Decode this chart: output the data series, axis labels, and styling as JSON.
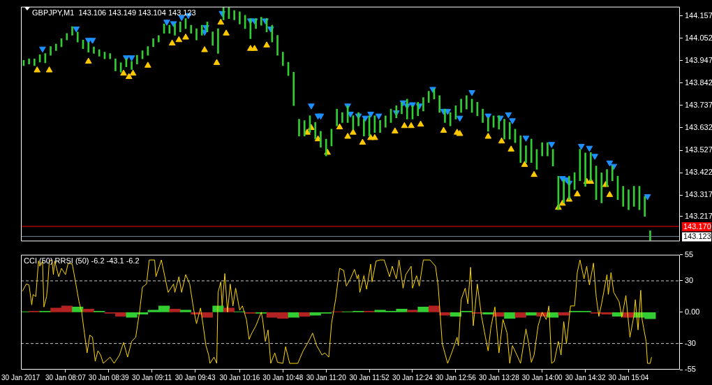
{
  "chart_data": [
    {
      "type": "bar",
      "title": "GBPJPY,M1  143.106 143.149 143.104 143.123",
      "xlim": [
        "2017-01-30T07:34",
        "2017-01-30T15:42"
      ],
      "ylim": [
        143.1,
        144.2
      ],
      "yticks": [
        144.157,
        144.052,
        143.947,
        143.842,
        143.737,
        143.632,
        143.527,
        143.422,
        143.317,
        143.217
      ],
      "tick_labels": "y",
      "color": "#32cd32",
      "x": [
        "2017-01-30T07:36",
        "2017-01-30T07:40",
        "2017-01-30T07:44",
        "2017-01-30T07:48",
        "2017-01-30T07:52",
        "2017-01-30T07:56",
        "2017-01-30T08:00",
        "2017-01-30T08:04",
        "2017-01-30T08:08",
        "2017-01-30T08:12",
        "2017-01-30T08:16",
        "2017-01-30T08:20",
        "2017-01-30T08:24",
        "2017-01-30T08:28",
        "2017-01-30T08:32",
        "2017-01-30T08:36",
        "2017-01-30T08:40",
        "2017-01-30T08:44",
        "2017-01-30T08:48",
        "2017-01-30T08:52",
        "2017-01-30T08:56",
        "2017-01-30T09:00",
        "2017-01-30T09:04",
        "2017-01-30T09:08",
        "2017-01-30T09:12",
        "2017-01-30T09:16",
        "2017-01-30T09:20",
        "2017-01-30T09:24",
        "2017-01-30T09:28",
        "2017-01-30T09:32",
        "2017-01-30T09:36",
        "2017-01-30T09:40",
        "2017-01-30T09:44",
        "2017-01-30T09:48",
        "2017-01-30T09:52",
        "2017-01-30T09:56",
        "2017-01-30T10:00",
        "2017-01-30T10:04",
        "2017-01-30T10:08",
        "2017-01-30T10:12",
        "2017-01-30T10:16",
        "2017-01-30T10:20",
        "2017-01-30T10:24",
        "2017-01-30T10:28",
        "2017-01-30T10:32",
        "2017-01-30T10:36",
        "2017-01-30T10:40",
        "2017-01-30T10:44",
        "2017-01-30T10:48",
        "2017-01-30T10:52",
        "2017-01-30T10:56",
        "2017-01-30T11:00",
        "2017-01-30T11:04",
        "2017-01-30T11:08",
        "2017-01-30T11:12",
        "2017-01-30T11:16",
        "2017-01-30T11:20",
        "2017-01-30T11:24",
        "2017-01-30T11:28",
        "2017-01-30T11:32",
        "2017-01-30T11:36",
        "2017-01-30T11:40",
        "2017-01-30T11:44",
        "2017-01-30T11:48",
        "2017-01-30T11:52",
        "2017-01-30T11:56",
        "2017-01-30T12:00",
        "2017-01-30T12:04",
        "2017-01-30T12:08",
        "2017-01-30T12:12",
        "2017-01-30T12:16",
        "2017-01-30T12:20",
        "2017-01-30T12:24",
        "2017-01-30T12:28",
        "2017-01-30T12:32",
        "2017-01-30T12:36",
        "2017-01-30T12:40",
        "2017-01-30T12:44",
        "2017-01-30T12:48",
        "2017-01-30T12:52",
        "2017-01-30T12:56",
        "2017-01-30T13:00",
        "2017-01-30T13:04",
        "2017-01-30T13:08",
        "2017-01-30T13:12",
        "2017-01-30T13:16",
        "2017-01-30T13:20",
        "2017-01-30T13:24",
        "2017-01-30T13:28",
        "2017-01-30T13:32",
        "2017-01-30T13:36",
        "2017-01-30T13:40",
        "2017-01-30T13:44",
        "2017-01-30T13:48",
        "2017-01-30T13:52",
        "2017-01-30T13:56",
        "2017-01-30T14:00",
        "2017-01-30T14:04",
        "2017-01-30T14:08",
        "2017-01-30T14:12",
        "2017-01-30T14:16",
        "2017-01-30T14:20",
        "2017-01-30T14:24",
        "2017-01-30T14:28",
        "2017-01-30T14:32",
        "2017-01-30T14:36",
        "2017-01-30T14:40",
        "2017-01-30T14:44",
        "2017-01-30T14:48",
        "2017-01-30T14:52",
        "2017-01-30T14:56",
        "2017-01-30T15:00",
        "2017-01-30T15:04",
        "2017-01-30T15:08",
        "2017-01-30T15:12",
        "2017-01-30T15:16",
        "2017-01-30T15:20"
      ],
      "base": [
        143.924,
        143.931,
        143.924,
        143.94,
        143.937,
        143.972,
        143.994,
        144.012,
        144.044,
        144.066,
        144.034,
        144.003,
        143.987,
        143.981,
        143.968,
        143.956,
        143.956,
        143.899,
        143.893,
        143.918,
        143.906,
        143.931,
        143.956,
        143.972,
        144.012,
        144.034,
        144.075,
        144.075,
        144.066,
        144.082,
        144.097,
        144.075,
        144.044,
        144.066,
        144.082,
        144.019,
        143.981,
        144.138,
        144.144,
        144.138,
        144.119,
        144.097,
        144.05,
        144.097,
        144.113,
        144.082,
        144.034,
        143.972,
        143.924,
        143.877,
        143.736,
        143.594,
        143.594,
        143.61,
        143.579,
        143.541,
        143.5,
        143.547,
        143.641,
        143.657,
        143.657,
        143.626,
        143.641,
        143.594,
        143.594,
        143.61,
        143.61,
        143.635,
        143.657,
        143.679,
        143.698,
        143.673,
        143.673,
        143.689,
        143.711,
        143.751,
        143.767,
        143.704,
        143.657,
        143.641,
        143.673,
        143.704,
        143.72,
        143.704,
        143.689,
        143.657,
        143.616,
        143.635,
        143.626,
        143.579,
        143.579,
        143.563,
        143.469,
        143.469,
        143.469,
        143.437,
        143.5,
        143.5,
        143.453,
        143.248,
        143.28,
        143.296,
        143.343,
        143.384,
        143.358,
        143.384,
        143.296,
        143.28,
        143.358,
        143.384,
        143.296,
        143.264,
        143.248,
        143.264,
        143.248,
        143.217,
        143.104
      ],
      "values": [
        0.025,
        0.025,
        0.031,
        0.035,
        0.044,
        0.041,
        0.031,
        0.038,
        0.031,
        0.041,
        0.047,
        0.041,
        0.044,
        0.031,
        0.031,
        0.031,
        0.025,
        0.057,
        0.044,
        0.038,
        0.038,
        0.041,
        0.038,
        0.041,
        0.038,
        0.031,
        0.044,
        0.038,
        0.053,
        0.047,
        0.047,
        0.038,
        0.053,
        0.047,
        0.047,
        0.063,
        0.116,
        0.06,
        0.053,
        0.044,
        0.057,
        0.063,
        0.094,
        0.047,
        0.038,
        0.063,
        0.079,
        0.094,
        0.063,
        0.063,
        0.157,
        0.079,
        0.072,
        0.079,
        0.079,
        0.075,
        0.079,
        0.079,
        0.079,
        0.047,
        0.079,
        0.063,
        0.063,
        0.079,
        0.094,
        0.079,
        0.057,
        0.053,
        0.063,
        0.057,
        0.053,
        0.094,
        0.063,
        0.063,
        0.063,
        0.053,
        0.047,
        0.079,
        0.063,
        0.063,
        0.063,
        0.063,
        0.063,
        0.063,
        0.063,
        0.063,
        0.063,
        0.053,
        0.063,
        0.094,
        0.079,
        0.063,
        0.126,
        0.079,
        0.11,
        0.094,
        0.063,
        0.063,
        0.079,
        0.157,
        0.11,
        0.11,
        0.079,
        0.148,
        0.157,
        0.132,
        0.157,
        0.141,
        0.079,
        0.069,
        0.11,
        0.094,
        0.094,
        0.094,
        0.11,
        0.094,
        0.045
      ],
      "series": [
        {
          "type": "scatter",
          "color": "#1e90ff",
          "marker": "triangle",
          "x": [
            "2017-01-30T07:50",
            "2017-01-30T08:15",
            "2017-01-30T08:24",
            "2017-01-30T08:27",
            "2017-01-30T08:52",
            "2017-01-30T08:56",
            "2017-01-30T09:22",
            "2017-01-30T09:27",
            "2017-01-30T09:33",
            "2017-01-30T09:38",
            "2017-01-30T09:50",
            "2017-01-30T09:51",
            "2017-01-30T10:03",
            "2017-01-30T10:24",
            "2017-01-30T10:27",
            "2017-01-30T10:35",
            "2017-01-30T10:39",
            "2017-01-30T11:09",
            "2017-01-30T11:14",
            "2017-01-30T11:16",
            "2017-01-30T11:36",
            "2017-01-30T11:38",
            "2017-01-30T11:44",
            "2017-01-30T11:49",
            "2017-01-30T11:53",
            "2017-01-30T11:59",
            "2017-01-30T12:12",
            "2017-01-30T12:17",
            "2017-01-30T12:20",
            "2017-01-30T12:24",
            "2017-01-30T12:29",
            "2017-01-30T12:39",
            "2017-01-30T12:47",
            "2017-01-30T12:50",
            "2017-01-30T12:59",
            "2017-01-30T13:08",
            "2017-01-30T13:20",
            "2017-01-30T13:29",
            "2017-01-30T13:35",
            "2017-01-30T13:38",
            "2017-01-30T13:48",
            "2017-01-30T14:07",
            "2017-01-30T14:15",
            "2017-01-30T14:18",
            "2017-01-30T14:20",
            "2017-01-30T14:29",
            "2017-01-30T14:35",
            "2017-01-30T14:39",
            "2017-01-30T14:50",
            "2017-01-30T14:53",
            "2017-01-30T15:18"
          ],
          "values": [
            144.003,
            144.097,
            144.044,
            144.044,
            143.962,
            143.962,
            144.129,
            144.122,
            144.151,
            144.16,
            144.082,
            144.104,
            144.17,
            144.135,
            144.135,
            144.135,
            144.097,
            143.736,
            143.689,
            143.689,
            143.736,
            143.698,
            143.689,
            143.679,
            143.698,
            143.689,
            143.704,
            143.751,
            143.736,
            143.742,
            143.736,
            143.814,
            143.711,
            143.711,
            143.679,
            143.799,
            143.689,
            143.679,
            143.695,
            143.667,
            143.585,
            143.556,
            143.396,
            143.39,
            143.374,
            143.547,
            143.538,
            143.5,
            143.469,
            143.453,
            143.311
          ]
        },
        {
          "type": "scatter",
          "color": "#ffc800",
          "marker": "triangle",
          "x": [
            "2017-01-30T07:46",
            "2017-01-30T07:55",
            "2017-01-30T08:24",
            "2017-01-30T08:50",
            "2017-01-30T08:54",
            "2017-01-30T08:57",
            "2017-01-30T09:08",
            "2017-01-30T09:26",
            "2017-01-30T09:31",
            "2017-01-30T09:36",
            "2017-01-30T09:50",
            "2017-01-30T09:59",
            "2017-01-30T10:02",
            "2017-01-30T10:06",
            "2017-01-30T10:24",
            "2017-01-30T10:27",
            "2017-01-30T10:36",
            "2017-01-30T11:06",
            "2017-01-30T11:09",
            "2017-01-30T11:14",
            "2017-01-30T11:21",
            "2017-01-30T11:30",
            "2017-01-30T11:36",
            "2017-01-30T11:40",
            "2017-01-30T11:47",
            "2017-01-30T11:53",
            "2017-01-30T11:56",
            "2017-01-30T12:11",
            "2017-01-30T12:18",
            "2017-01-30T12:23",
            "2017-01-30T12:30",
            "2017-01-30T12:47",
            "2017-01-30T12:57",
            "2017-01-30T12:59",
            "2017-01-30T13:20",
            "2017-01-30T13:30",
            "2017-01-30T13:37",
            "2017-01-30T13:47",
            "2017-01-30T13:54",
            "2017-01-30T14:12",
            "2017-01-30T14:15",
            "2017-01-30T14:20",
            "2017-01-30T14:26",
            "2017-01-30T14:33",
            "2017-01-30T14:36",
            "2017-01-30T14:47",
            "2017-01-30T14:50"
          ],
          "values": [
            143.902,
            143.902,
            143.943,
            143.887,
            143.871,
            143.887,
            143.924,
            144.028,
            144.044,
            144.056,
            143.997,
            143.937,
            144.126,
            144.075,
            144.003,
            144.003,
            144.019,
            143.61,
            143.632,
            143.579,
            143.516,
            143.635,
            143.591,
            143.61,
            143.563,
            143.585,
            143.585,
            143.616,
            143.641,
            143.641,
            143.648,
            143.619,
            143.61,
            143.604,
            143.591,
            143.569,
            143.531,
            143.459,
            143.412,
            143.258,
            143.277,
            143.296,
            143.321,
            143.38,
            143.38,
            143.365,
            143.318
          ]
        }
      ],
      "ref_lines": [
        {
          "axis": "y",
          "value": 143.17,
          "label": "143.170",
          "color": "#ff0000"
        },
        {
          "axis": "y",
          "value": 143.123,
          "label": "143.123",
          "color": "#778899"
        }
      ]
    },
    {
      "type": "line",
      "title": "CCI (50) RRSI (50) -6.2 -43.1 -6.2",
      "xlim": [
        "2017-01-30T07:34",
        "2017-01-30T15:42"
      ],
      "ylim": [
        -55,
        55
      ],
      "yticks": [
        55,
        30,
        {
          "value": 0,
          "label": "0.00"
        },
        -30,
        -55
      ],
      "annotations": [
        "30 Jan 2017"
      ],
      "xticks": [
        {
          "value": "2017-01-30T08:07",
          "label": "30 Jan 08:07"
        },
        {
          "value": "2017-01-30T08:39",
          "label": "30 Jan 08:39"
        },
        {
          "value": "2017-01-30T09:11",
          "label": "30 Jan 09:11"
        },
        {
          "value": "2017-01-30T09:43",
          "label": "30 Jan 09:43"
        },
        {
          "value": "2017-01-30T10:16",
          "label": "30 Jan 10:16"
        },
        {
          "value": "2017-01-30T10:48",
          "label": "30 Jan 10:48"
        },
        {
          "value": "2017-01-30T11:20",
          "label": "30 Jan 11:20"
        },
        {
          "value": "2017-01-30T11:52",
          "label": "30 Jan 11:52"
        },
        {
          "value": "2017-01-30T12:24",
          "label": "30 Jan 12:24"
        },
        {
          "value": "2017-01-30T12:56",
          "label": "30 Jan 12:56"
        },
        {
          "value": "2017-01-30T13:28",
          "label": "30 Jan 13:28"
        },
        {
          "value": "2017-01-30T14:00",
          "label": "30 Jan 14:00"
        },
        {
          "value": "2017-01-30T14:32",
          "label": "30 Jan 14:32"
        },
        {
          "value": "2017-01-30T15:04",
          "label": "30 Jan 15:04"
        }
      ],
      "series": [
        {
          "type": "line",
          "color": "#ffd700",
          "marker": "none",
          "x": [
            "2017-01-30T07:35",
            "2017-01-30T07:38",
            "2017-01-30T07:40",
            "2017-01-30T07:42",
            "2017-01-30T07:43",
            "2017-01-30T07:45",
            "2017-01-30T07:47",
            "2017-01-30T07:48",
            "2017-01-30T07:50",
            "2017-01-30T07:51",
            "2017-01-30T07:53",
            "2017-01-30T07:54",
            "2017-01-30T07:55",
            "2017-01-30T07:57",
            "2017-01-30T07:58",
            "2017-01-30T07:59",
            "2017-01-30T08:02",
            "2017-01-30T08:04",
            "2017-01-30T08:07",
            "2017-01-30T08:09",
            "2017-01-30T08:12",
            "2017-01-30T08:14",
            "2017-01-30T08:17",
            "2017-01-30T08:19",
            "2017-01-30T08:21",
            "2017-01-30T08:23",
            "2017-01-30T08:25",
            "2017-01-30T08:27",
            "2017-01-30T08:29",
            "2017-01-30T08:31",
            "2017-01-30T08:33",
            "2017-01-30T08:35",
            "2017-01-30T08:40",
            "2017-01-30T08:43",
            "2017-01-30T08:47",
            "2017-01-30T08:50",
            "2017-01-30T08:53",
            "2017-01-30T08:56",
            "2017-01-30T08:59",
            "2017-01-30T09:02",
            "2017-01-30T09:04",
            "2017-01-30T09:07",
            "2017-01-30T09:09",
            "2017-01-30T09:13",
            "2017-01-30T09:14",
            "2017-01-30T09:18",
            "2017-01-30T09:23",
            "2017-01-30T09:27",
            "2017-01-30T09:28",
            "2017-01-30T09:31",
            "2017-01-30T09:33",
            "2017-01-30T09:36",
            "2017-01-30T09:39",
            "2017-01-30T09:42",
            "2017-01-30T09:44",
            "2017-01-30T09:47",
            "2017-01-30T09:49",
            "2017-01-30T09:51",
            "2017-01-30T09:53",
            "2017-01-30T09:54",
            "2017-01-30T09:57",
            "2017-01-30T09:59",
            "2017-01-30T10:00",
            "2017-01-30T10:02",
            "2017-01-30T10:03",
            "2017-01-30T10:05",
            "2017-01-30T10:07",
            "2017-01-30T10:09",
            "2017-01-30T10:11",
            "2017-01-30T10:13",
            "2017-01-30T10:16",
            "2017-01-30T10:18",
            "2017-01-30T10:21",
            "2017-01-30T10:23",
            "2017-01-30T10:25",
            "2017-01-30T10:28",
            "2017-01-30T10:32",
            "2017-01-30T10:33",
            "2017-01-30T10:35",
            "2017-01-30T10:37",
            "2017-01-30T10:39",
            "2017-01-30T10:42",
            "2017-01-30T10:44",
            "2017-01-30T10:48",
            "2017-01-30T10:50",
            "2017-01-30T10:53",
            "2017-01-30T10:59",
            "2017-01-30T11:03",
            "2017-01-30T11:07",
            "2017-01-30T11:10",
            "2017-01-30T11:13",
            "2017-01-30T11:17",
            "2017-01-30T11:19",
            "2017-01-30T11:22",
            "2017-01-30T11:24",
            "2017-01-30T11:27",
            "2017-01-30T11:30",
            "2017-01-30T11:33",
            "2017-01-30T11:35",
            "2017-01-30T11:38",
            "2017-01-30T11:41",
            "2017-01-30T11:43",
            "2017-01-30T11:44",
            "2017-01-30T11:45",
            "2017-01-30T11:48",
            "2017-01-30T11:50",
            "2017-01-30T11:53",
            "2017-01-30T11:54",
            "2017-01-30T11:57",
            "2017-01-30T12:00",
            "2017-01-30T12:03",
            "2017-01-30T12:07",
            "2017-01-30T12:09",
            "2017-01-30T12:12",
            "2017-01-30T12:14",
            "2017-01-30T12:17",
            "2017-01-30T12:19",
            "2017-01-30T12:23",
            "2017-01-30T12:24",
            "2017-01-30T12:27",
            "2017-01-30T12:29",
            "2017-01-30T12:32",
            "2017-01-30T12:37",
            "2017-01-30T12:41",
            "2017-01-30T12:43",
            "2017-01-30T12:46",
            "2017-01-30T12:50",
            "2017-01-30T12:53",
            "2017-01-30T12:57",
            "2017-01-30T12:58",
            "2017-01-30T13:00",
            "2017-01-30T13:03",
            "2017-01-30T13:05",
            "2017-01-30T13:07",
            "2017-01-30T13:09",
            "2017-01-30T13:12",
            "2017-01-30T13:15",
            "2017-01-30T13:18",
            "2017-01-30T13:20",
            "2017-01-30T13:22",
            "2017-01-30T13:25",
            "2017-01-30T13:28",
            "2017-01-30T13:31",
            "2017-01-30T13:34",
            "2017-01-30T13:36",
            "2017-01-30T13:38",
            "2017-01-30T13:42",
            "2017-01-30T13:44",
            "2017-01-30T13:48",
            "2017-01-30T13:50",
            "2017-01-30T13:52",
            "2017-01-30T13:54",
            "2017-01-30T13:57",
            "2017-01-30T14:00",
            "2017-01-30T14:03",
            "2017-01-30T14:05",
            "2017-01-30T14:07",
            "2017-01-30T14:09",
            "2017-01-30T14:12",
            "2017-01-30T14:14",
            "2017-01-30T14:16",
            "2017-01-30T14:18",
            "2017-01-30T14:21",
            "2017-01-30T14:24",
            "2017-01-30T14:26",
            "2017-01-30T14:28",
            "2017-01-30T14:31",
            "2017-01-30T14:33",
            "2017-01-30T14:35",
            "2017-01-30T14:38",
            "2017-01-30T14:40",
            "2017-01-30T14:42",
            "2017-01-30T14:44",
            "2017-01-30T14:48",
            "2017-01-30T14:49",
            "2017-01-30T14:51",
            "2017-01-30T14:53",
            "2017-01-30T14:57",
            "2017-01-30T14:59",
            "2017-01-30T15:02",
            "2017-01-30T15:05",
            "2017-01-30T15:08",
            "2017-01-30T15:09",
            "2017-01-30T15:11",
            "2017-01-30T15:13",
            "2017-01-30T15:14",
            "2017-01-30T15:17",
            "2017-01-30T15:18",
            "2017-01-30T15:20",
            "2017-01-30T15:21"
          ],
          "values": [
            20,
            27,
            26,
            7,
            17,
            15,
            49,
            44,
            49,
            5,
            15,
            29,
            49,
            50,
            36,
            49,
            34,
            42,
            36,
            47,
            46,
            32,
            10,
            0,
            -20,
            -39,
            -22,
            -24,
            -47,
            -37,
            -41,
            -49,
            -43,
            -49,
            -41,
            -29,
            -43,
            -28,
            -24,
            2,
            24,
            27,
            50,
            50,
            34,
            50,
            19,
            27,
            19,
            34,
            19,
            36,
            27,
            2,
            -11,
            4,
            -13,
            -32,
            -41,
            -49,
            -43,
            -49,
            19,
            29,
            6,
            37,
            0,
            27,
            6,
            23,
            2,
            6,
            -7,
            -26,
            -20,
            -13,
            0,
            -7,
            -28,
            -17,
            -49,
            -39,
            -48,
            -49,
            -33,
            -49,
            -49,
            -37,
            -28,
            -20,
            -32,
            -41,
            -39,
            -43,
            -11,
            12,
            42,
            40,
            25,
            32,
            41,
            32,
            36,
            19,
            35,
            22,
            46,
            29,
            49,
            50,
            50,
            34,
            44,
            32,
            50,
            23,
            36,
            44,
            23,
            35,
            25,
            50,
            50,
            44,
            25,
            -30,
            -49,
            -39,
            -24,
            -32,
            12,
            23,
            8,
            43,
            -13,
            27,
            -3,
            -24,
            -37,
            -15,
            5,
            -39,
            -7,
            -20,
            -49,
            -32,
            -43,
            -49,
            -16,
            -30,
            -48,
            -41,
            -13,
            0,
            -7,
            6,
            -49,
            -47,
            -28,
            -41,
            -9,
            -30,
            6,
            6,
            38,
            50,
            32,
            44,
            26,
            47,
            15,
            -4,
            8,
            36,
            17,
            38,
            19,
            10,
            -5,
            16,
            -24,
            -3,
            12,
            -17,
            21,
            -7,
            -28,
            -49,
            -49,
            -43.1
          ]
        },
        {
          "type": "bar",
          "x": [
            "2017-01-30T07:36",
            "2017-01-30T07:44",
            "2017-01-30T07:52",
            "2017-01-30T08:00",
            "2017-01-30T08:08",
            "2017-01-30T08:16",
            "2017-01-30T08:24",
            "2017-01-30T08:32",
            "2017-01-30T08:40",
            "2017-01-30T08:48",
            "2017-01-30T08:56",
            "2017-01-30T09:04",
            "2017-01-30T09:12",
            "2017-01-30T09:20",
            "2017-01-30T09:28",
            "2017-01-30T09:36",
            "2017-01-30T09:44",
            "2017-01-30T09:52",
            "2017-01-30T10:00",
            "2017-01-30T10:08",
            "2017-01-30T10:16",
            "2017-01-30T10:24",
            "2017-01-30T10:32",
            "2017-01-30T10:40",
            "2017-01-30T10:48",
            "2017-01-30T10:56",
            "2017-01-30T11:04",
            "2017-01-30T11:12",
            "2017-01-30T11:20",
            "2017-01-30T11:28",
            "2017-01-30T11:36",
            "2017-01-30T11:44",
            "2017-01-30T11:52",
            "2017-01-30T12:00",
            "2017-01-30T12:08",
            "2017-01-30T12:16",
            "2017-01-30T12:24",
            "2017-01-30T12:32",
            "2017-01-30T12:40",
            "2017-01-30T12:48",
            "2017-01-30T12:56",
            "2017-01-30T13:04",
            "2017-01-30T13:12",
            "2017-01-30T13:20",
            "2017-01-30T13:28",
            "2017-01-30T13:36",
            "2017-01-30T13:44",
            "2017-01-30T13:52",
            "2017-01-30T14:00",
            "2017-01-30T14:08",
            "2017-01-30T14:16",
            "2017-01-30T14:24",
            "2017-01-30T14:32",
            "2017-01-30T14:40",
            "2017-01-30T14:48",
            "2017-01-30T14:56",
            "2017-01-30T15:04",
            "2017-01-30T15:12",
            "2017-01-30T15:20"
          ],
          "values": [
            0.5,
            1,
            1,
            4,
            6,
            5,
            3,
            1,
            -1,
            -4,
            -5,
            -2,
            2,
            6,
            3,
            2,
            -2,
            -5,
            6,
            4,
            0.5,
            -1,
            -1,
            -5,
            -6,
            -5,
            -4,
            -3,
            -1,
            0.5,
            0.5,
            1,
            1,
            2,
            1,
            3,
            2,
            5,
            6,
            -3,
            -4,
            1,
            -1,
            -2,
            -4,
            -6,
            -5,
            -3,
            -4,
            -5,
            -3,
            1,
            1,
            -1,
            -2,
            -4,
            -5,
            -5,
            -6.2
          ],
          "colors": [
            "#32cd32",
            "#b22222",
            "#32cd32",
            "#b22222",
            "#b22222",
            "#32cd32",
            "#b22222",
            "#32cd32",
            "#b22222",
            "#b22222",
            "#32cd32",
            "#32cd32",
            "#32cd32",
            "#32cd32",
            "#b22222",
            "#32cd32",
            "#b22222",
            "#b22222",
            "#32cd32",
            "#b22222",
            "#32cd32",
            "#b22222",
            "#32cd32",
            "#b22222",
            "#b22222",
            "#32cd32",
            "#b22222",
            "#32cd32",
            "#32cd32",
            "#b22222",
            "#32cd32",
            "#32cd32",
            "#b22222",
            "#32cd32",
            "#32cd32",
            "#32cd32",
            "#b22222",
            "#32cd32",
            "#b22222",
            "#b22222",
            "#32cd32",
            "#32cd32",
            "#b22222",
            "#32cd32",
            "#b22222",
            "#32cd32",
            "#b22222",
            "#32cd32",
            "#b22222",
            "#32cd32",
            "#b22222",
            "#32cd32",
            "#32cd32",
            "#b22222",
            "#b22222",
            "#32cd32",
            "#b22222",
            "#32cd32",
            "#32cd32"
          ]
        }
      ],
      "ref_lines": [
        {
          "axis": "y",
          "value": 30,
          "color": "#c8c8c8",
          "line_style": "dashed"
        },
        {
          "axis": "y",
          "value": -30,
          "color": "#c8c8c8",
          "line_style": "dashed"
        }
      ]
    }
  ]
}
